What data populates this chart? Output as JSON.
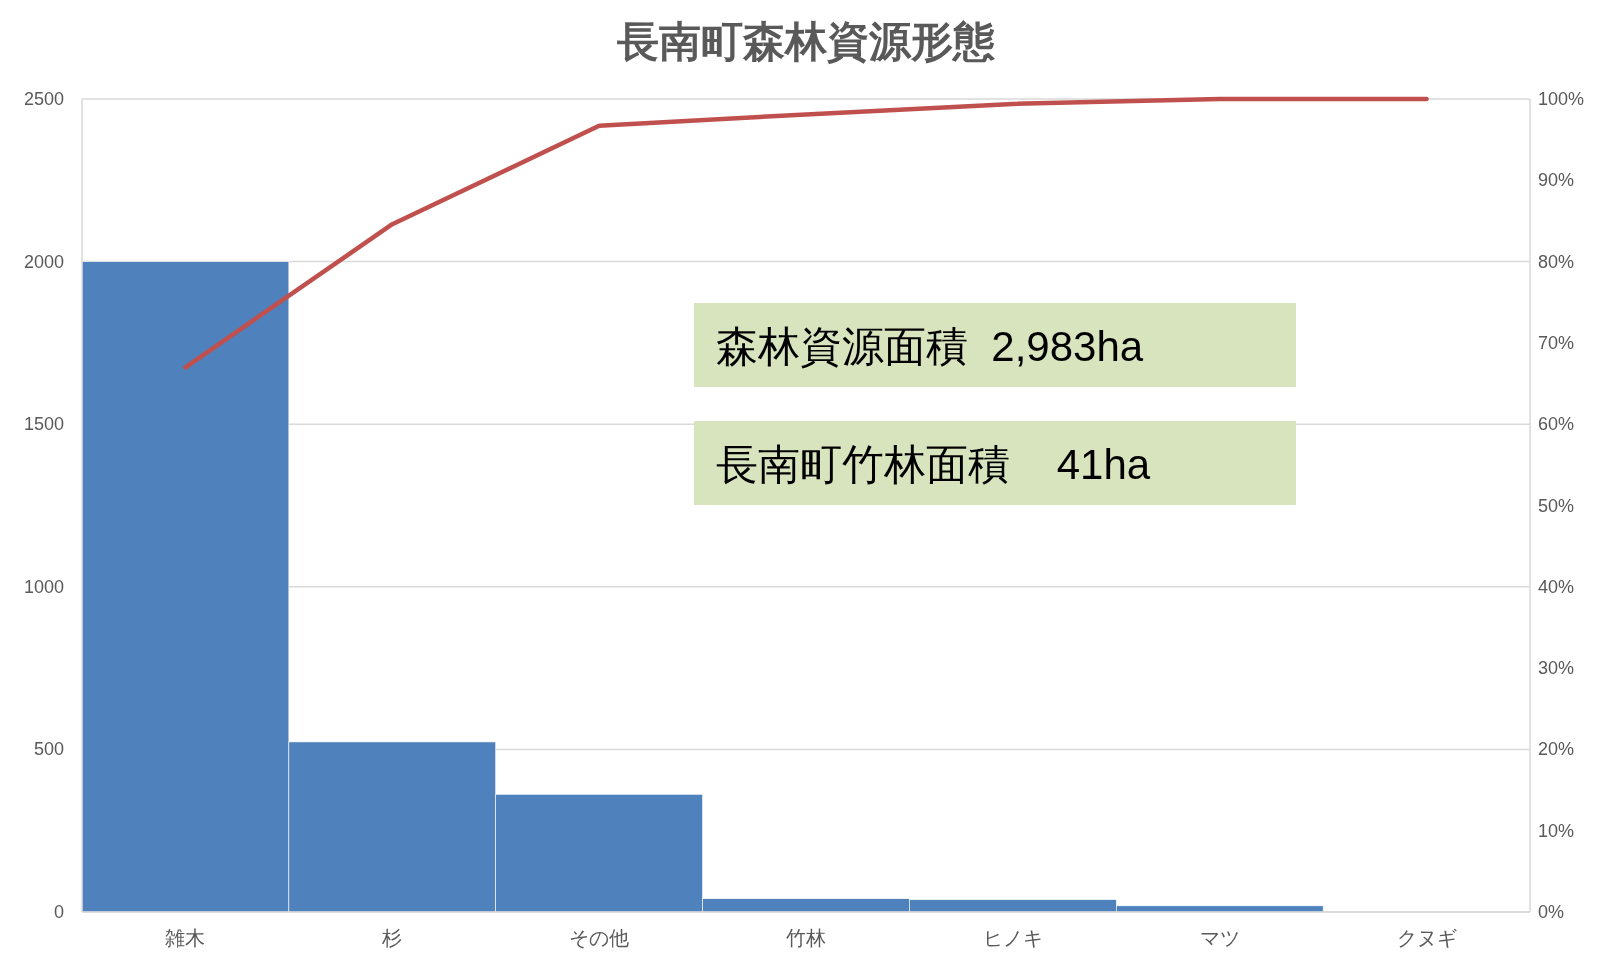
{
  "chart_data": {
    "type": "bar",
    "title": "長南町森林資源形態",
    "categories": [
      "雑木",
      "杉",
      "その他",
      "竹林",
      "ヒノキ",
      "マツ",
      "クヌギ"
    ],
    "series": [
      {
        "color": "#4f81bd",
        "values": [
          2000,
          523,
          362,
          41,
          38,
          19,
          0
        ]
      },
      {
        "type": "line",
        "axis": "y2",
        "color": "#c0504d",
        "values": [
          67.0,
          84.6,
          96.7,
          98.1,
          99.4,
          100,
          100
        ]
      }
    ],
    "ylim": [
      0,
      2500
    ],
    "yticks": [
      0,
      500,
      1000,
      1500,
      2000,
      2500
    ],
    "y2lim": [
      0,
      100
    ],
    "y2ticks": [
      {
        "value": 0,
        "label": "0%"
      },
      {
        "value": 10,
        "label": "10%"
      },
      {
        "value": 20,
        "label": "20%"
      },
      {
        "value": 30,
        "label": "30%"
      },
      {
        "value": 40,
        "label": "40%"
      },
      {
        "value": 50,
        "label": "50%"
      },
      {
        "value": 60,
        "label": "60%"
      },
      {
        "value": 70,
        "label": "70%"
      },
      {
        "value": 80,
        "label": "80%"
      },
      {
        "value": 90,
        "label": "90%"
      },
      {
        "value": 100,
        "label": "100%"
      }
    ],
    "grid": "y",
    "marker": "none",
    "line_style": "solid",
    "annotations": [
      "森林資源面積  2,983ha",
      "長南町竹林面積    41ha"
    ]
  }
}
